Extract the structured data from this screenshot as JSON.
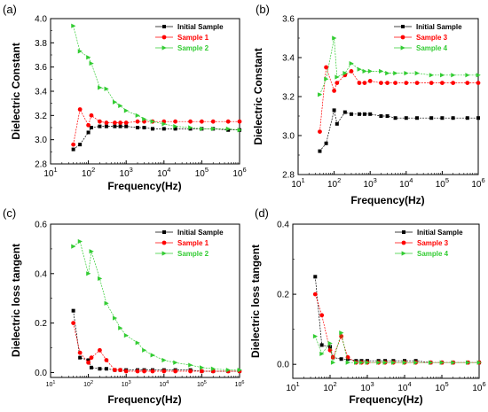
{
  "colors": {
    "initial": "#000000",
    "s1": "#ff0000",
    "s2": "#33cc33"
  },
  "chart_data": [
    {
      "id": "a",
      "panel_label": "(a)",
      "type": "line",
      "xlabel": "Frequency(Hz)",
      "ylabel": "Dielectric Constant",
      "xscale": "log",
      "xlim": [
        10,
        1000000
      ],
      "ylim": [
        2.8,
        4.0
      ],
      "x_ticks": [
        10,
        100,
        1000,
        10000,
        100000,
        1000000
      ],
      "x_tick_labels": [
        {
          "base": "10",
          "exp": "1"
        },
        {
          "base": "10",
          "exp": "2"
        },
        {
          "base": "10",
          "exp": "3"
        },
        {
          "base": "10",
          "exp": "4"
        },
        {
          "base": "10",
          "exp": "5"
        },
        {
          "base": "10",
          "exp": "6"
        }
      ],
      "x_tick_size": "normal",
      "y_ticks": [
        2.8,
        3.0,
        3.2,
        3.4,
        3.6,
        3.8,
        4.0
      ],
      "y_tick_labels": [
        "2.8",
        "3.0",
        "3.2",
        "3.4",
        "3.6",
        "3.8",
        "4.0"
      ],
      "legend_position": "top-right",
      "series": [
        {
          "name": "Initial Sample",
          "color": "#000000",
          "marker": "square",
          "x": [
            40,
            60,
            100,
            120,
            200,
            300,
            500,
            700,
            1000,
            2000,
            3000,
            5000,
            10000,
            20000,
            50000,
            100000,
            200000,
            500000,
            1000000
          ],
          "y": [
            2.92,
            2.96,
            3.06,
            3.1,
            3.11,
            3.11,
            3.11,
            3.11,
            3.11,
            3.1,
            3.1,
            3.09,
            3.09,
            3.09,
            3.09,
            3.09,
            3.09,
            3.08,
            3.08
          ]
        },
        {
          "name": "Sample 1",
          "color": "#ff0000",
          "marker": "circle",
          "x": [
            40,
            60,
            100,
            120,
            200,
            300,
            500,
            700,
            1000,
            2000,
            3000,
            5000,
            10000,
            20000,
            50000,
            100000,
            200000,
            500000,
            1000000
          ],
          "y": [
            2.96,
            3.25,
            3.12,
            3.2,
            3.15,
            3.14,
            3.14,
            3.14,
            3.14,
            3.15,
            3.15,
            3.15,
            3.15,
            3.15,
            3.15,
            3.15,
            3.15,
            3.15,
            3.15
          ]
        },
        {
          "name": "Sample 2",
          "color": "#33cc33",
          "marker": "triangle-right",
          "x": [
            40,
            60,
            100,
            120,
            200,
            300,
            500,
            700,
            1000,
            2000,
            3000,
            5000,
            10000,
            20000,
            50000,
            100000,
            200000,
            500000,
            1000000
          ],
          "y": [
            3.94,
            3.73,
            3.68,
            3.63,
            3.43,
            3.42,
            3.31,
            3.28,
            3.24,
            3.2,
            3.17,
            3.15,
            3.13,
            3.11,
            3.1,
            3.09,
            3.09,
            3.09,
            3.08
          ]
        }
      ]
    },
    {
      "id": "b",
      "panel_label": "(b)",
      "type": "line",
      "xlabel": "Frequency(Hz)",
      "ylabel": "Dielectric Constant",
      "xscale": "log",
      "xlim": [
        10,
        1000000
      ],
      "ylim": [
        2.8,
        3.6
      ],
      "x_ticks": [
        10,
        100,
        1000,
        10000,
        100000,
        1000000
      ],
      "x_tick_labels": [
        {
          "base": "10",
          "exp": "1"
        },
        {
          "base": "10",
          "exp": "2"
        },
        {
          "base": "10",
          "exp": "3"
        },
        {
          "base": "10",
          "exp": "4"
        },
        {
          "base": "10",
          "exp": "5"
        },
        {
          "base": "10",
          "exp": "6"
        }
      ],
      "x_tick_size": "normal",
      "y_ticks": [
        2.8,
        3.0,
        3.2,
        3.4,
        3.6
      ],
      "y_tick_labels": [
        "2.8",
        "3.0",
        "3.2",
        "3.4",
        "3.6"
      ],
      "legend_position": "top-right",
      "series": [
        {
          "name": "Initial Sample",
          "color": "#000000",
          "marker": "square",
          "x": [
            40,
            60,
            100,
            120,
            200,
            300,
            500,
            700,
            1000,
            2000,
            3000,
            5000,
            10000,
            20000,
            50000,
            100000,
            200000,
            500000,
            1000000
          ],
          "y": [
            2.92,
            2.96,
            3.13,
            3.06,
            3.12,
            3.11,
            3.11,
            3.11,
            3.11,
            3.1,
            3.1,
            3.09,
            3.09,
            3.09,
            3.09,
            3.09,
            3.09,
            3.09,
            3.09
          ]
        },
        {
          "name": "Sample 3",
          "color": "#ff0000",
          "marker": "circle",
          "x": [
            40,
            60,
            100,
            120,
            200,
            300,
            500,
            700,
            1000,
            2000,
            3000,
            5000,
            10000,
            20000,
            50000,
            100000,
            200000,
            500000,
            1000000
          ],
          "y": [
            3.02,
            3.35,
            3.23,
            3.27,
            3.31,
            3.33,
            3.27,
            3.27,
            3.28,
            3.27,
            3.27,
            3.27,
            3.27,
            3.27,
            3.27,
            3.27,
            3.27,
            3.27,
            3.27
          ]
        },
        {
          "name": "Sample 4",
          "color": "#33cc33",
          "marker": "triangle-right",
          "x": [
            40,
            60,
            100,
            120,
            200,
            300,
            500,
            700,
            1000,
            2000,
            3000,
            5000,
            10000,
            20000,
            50000,
            100000,
            200000,
            500000,
            1000000
          ],
          "y": [
            3.21,
            3.29,
            3.5,
            3.3,
            3.32,
            3.37,
            3.34,
            3.33,
            3.33,
            3.33,
            3.32,
            3.32,
            3.32,
            3.32,
            3.31,
            3.31,
            3.31,
            3.31,
            3.31
          ]
        }
      ]
    },
    {
      "id": "c",
      "panel_label": "(c)",
      "type": "line",
      "xlabel": "Frequency(Hz)",
      "ylabel": "Dielectric loss tangent",
      "xscale": "log",
      "xlim": [
        10,
        1000000
      ],
      "ylim": [
        -0.02,
        0.6
      ],
      "x_ticks": [
        10,
        100,
        1000,
        10000,
        100000,
        1000000
      ],
      "x_tick_labels": [
        {
          "base": "10",
          "exp": "1"
        },
        {
          "base": "10",
          "exp": "2"
        },
        {
          "base": "10",
          "exp": "3"
        },
        {
          "base": "10",
          "exp": "4"
        },
        {
          "base": "10",
          "exp": "5"
        },
        {
          "base": "10",
          "exp": "6"
        }
      ],
      "x_tick_size": "small",
      "y_ticks": [
        0.0,
        0.2,
        0.4,
        0.6
      ],
      "y_tick_labels": [
        "0.0",
        "0.2",
        "0.4",
        "0.6"
      ],
      "legend_position": "top-right",
      "series": [
        {
          "name": "Initial Sample",
          "color": "#000000",
          "marker": "square",
          "x": [
            40,
            60,
            100,
            120,
            200,
            300,
            500,
            700,
            1000,
            2000,
            3000,
            5000,
            10000,
            20000,
            50000,
            100000,
            200000,
            500000,
            1000000
          ],
          "y": [
            0.25,
            0.06,
            0.05,
            0.02,
            0.015,
            0.015,
            0.01,
            0.01,
            0.01,
            0.01,
            0.01,
            0.01,
            0.01,
            0.01,
            0.01,
            0.005,
            0.005,
            0.005,
            0.005
          ]
        },
        {
          "name": "Sample 1",
          "color": "#ff0000",
          "marker": "circle",
          "x": [
            40,
            60,
            100,
            120,
            200,
            300,
            500,
            700,
            1000,
            2000,
            3000,
            5000,
            10000,
            20000,
            50000,
            100000,
            200000,
            500000,
            1000000
          ],
          "y": [
            0.2,
            0.08,
            0.04,
            0.06,
            0.09,
            0.05,
            0.01,
            0.01,
            0.005,
            0.005,
            0.005,
            0.005,
            0.005,
            0.005,
            0.005,
            0.005,
            0.005,
            0.005,
            0.005
          ]
        },
        {
          "name": "Sample 2",
          "color": "#33cc33",
          "marker": "triangle-right",
          "x": [
            40,
            60,
            100,
            120,
            200,
            300,
            500,
            700,
            1000,
            2000,
            3000,
            5000,
            10000,
            20000,
            50000,
            100000,
            200000,
            500000,
            1000000
          ],
          "y": [
            0.51,
            0.53,
            0.4,
            0.49,
            0.38,
            0.28,
            0.22,
            0.18,
            0.15,
            0.12,
            0.09,
            0.07,
            0.05,
            0.04,
            0.03,
            0.02,
            0.015,
            0.01,
            0.01
          ]
        }
      ]
    },
    {
      "id": "d",
      "panel_label": "(d)",
      "type": "line",
      "xlabel": "Frequency(Hz)",
      "ylabel": "Dielectric loss tangent",
      "xscale": "log",
      "xlim": [
        10,
        1000000
      ],
      "ylim": [
        -0.04,
        0.4
      ],
      "x_ticks": [
        10,
        100,
        1000,
        10000,
        100000,
        1000000
      ],
      "x_tick_labels": [
        {
          "base": "10",
          "exp": "1"
        },
        {
          "base": "10",
          "exp": "2"
        },
        {
          "base": "10",
          "exp": "3"
        },
        {
          "base": "10",
          "exp": "4"
        },
        {
          "base": "10",
          "exp": "5"
        },
        {
          "base": "10",
          "exp": "6"
        }
      ],
      "x_tick_size": "normal",
      "y_ticks": [
        0.0,
        0.2,
        0.4
      ],
      "y_tick_labels": [
        "0.0",
        "0.2",
        "0.4"
      ],
      "legend_position": "top-right",
      "series": [
        {
          "name": "Initial Sample",
          "color": "#000000",
          "marker": "square",
          "x": [
            40,
            60,
            100,
            120,
            200,
            300,
            500,
            700,
            1000,
            2000,
            3000,
            5000,
            10000,
            20000,
            50000,
            100000,
            200000,
            500000,
            1000000
          ],
          "y": [
            0.25,
            0.055,
            0.05,
            0.02,
            0.015,
            0.015,
            0.01,
            0.01,
            0.01,
            0.01,
            0.01,
            0.01,
            0.01,
            0.01,
            0.005,
            0.005,
            0.005,
            0.005,
            0.005
          ]
        },
        {
          "name": "Sample 3",
          "color": "#ff0000",
          "marker": "circle",
          "x": [
            40,
            60,
            100,
            120,
            200,
            300,
            500,
            700,
            1000,
            2000,
            3000,
            5000,
            10000,
            20000,
            50000,
            100000,
            200000,
            500000,
            1000000
          ],
          "y": [
            0.2,
            0.14,
            0.04,
            0.02,
            0.08,
            0.02,
            0.005,
            0.005,
            0.005,
            0.005,
            0.005,
            0.005,
            0.005,
            0.005,
            0.005,
            0.005,
            0.005,
            0.005,
            0.005
          ]
        },
        {
          "name": "Sample 4",
          "color": "#33cc33",
          "marker": "triangle-right",
          "x": [
            40,
            60,
            100,
            120,
            200,
            300,
            500,
            700,
            1000,
            2000,
            3000,
            5000,
            10000,
            20000,
            50000,
            100000,
            200000,
            500000,
            1000000
          ],
          "y": [
            0.08,
            0.03,
            0.06,
            0.005,
            0.09,
            0.005,
            0.005,
            0.005,
            0.005,
            0.005,
            0.005,
            0.005,
            0.005,
            0.005,
            0.005,
            0.005,
            0.005,
            0.005,
            0.005
          ]
        }
      ]
    }
  ]
}
